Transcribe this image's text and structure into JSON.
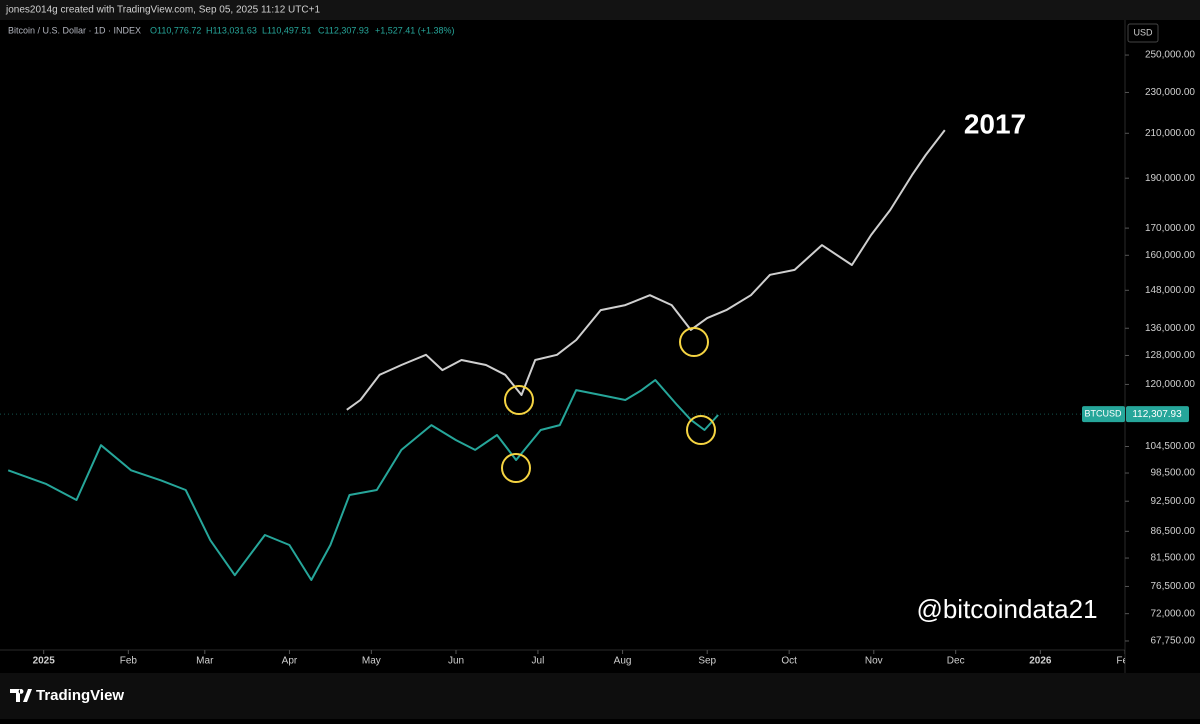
{
  "header": {
    "author_line": "jones2014g created with TradingView.com, Sep 05, 2025 11:12 UTC+1"
  },
  "legend": {
    "symbol": "Bitcoin / U.S. Dollar · 1D · INDEX",
    "open": "O110,776.72",
    "high": "H113,031.63",
    "low": "L110,497.51",
    "close": "C112,307.93",
    "change": "+1,527.41 (+1.38%)"
  },
  "footer": {
    "brand": "TradingView"
  },
  "chart_data": {
    "type": "line",
    "currency": "USD",
    "log_scale": true,
    "grid": false,
    "xlim": [
      -16,
      396
    ],
    "ylim": [
      66400,
      270300
    ],
    "xticks": [
      {
        "value": 0,
        "label": "2025"
      },
      {
        "value": 31,
        "label": "Feb"
      },
      {
        "value": 59,
        "label": "Mar"
      },
      {
        "value": 90,
        "label": "Apr"
      },
      {
        "value": 120,
        "label": "May"
      },
      {
        "value": 151,
        "label": "Jun"
      },
      {
        "value": 181,
        "label": "Jul"
      },
      {
        "value": 212,
        "label": "Aug"
      },
      {
        "value": 243,
        "label": "Sep"
      },
      {
        "value": 273,
        "label": "Oct"
      },
      {
        "value": 304,
        "label": "Nov"
      },
      {
        "value": 334,
        "label": "Dec"
      },
      {
        "value": 365,
        "label": "2026"
      },
      {
        "value": 396,
        "label": "Feb"
      }
    ],
    "yticks": [
      {
        "value": 250000,
        "label": "250,000.00"
      },
      {
        "value": 230000,
        "label": "230,000.00"
      },
      {
        "value": 210000,
        "label": "210,000.00"
      },
      {
        "value": 190000,
        "label": "190,000.00"
      },
      {
        "value": 170000,
        "label": "170,000.00"
      },
      {
        "value": 160000,
        "label": "160,000.00"
      },
      {
        "value": 148000,
        "label": "148,000.00"
      },
      {
        "value": 136000,
        "label": "136,000.00"
      },
      {
        "value": 128000,
        "label": "128,000.00"
      },
      {
        "value": 120000,
        "label": "120,000.00"
      },
      {
        "value": 104500,
        "label": "104,500.00"
      },
      {
        "value": 98500,
        "label": "98,500.00"
      },
      {
        "value": 92500,
        "label": "92,500.00"
      },
      {
        "value": 86500,
        "label": "86,500.00"
      },
      {
        "value": 81500,
        "label": "81,500.00"
      },
      {
        "value": 76500,
        "label": "76,500.00"
      },
      {
        "value": 72000,
        "label": "72,000.00"
      },
      {
        "value": 67750,
        "label": "67,750.00"
      }
    ],
    "series": [
      {
        "name": "BTCUSD",
        "color": "#26a69a",
        "x": [
          -13,
          1,
          12,
          21,
          32,
          43,
          52,
          61,
          70,
          81,
          90,
          98,
          105,
          112,
          122,
          131,
          142,
          151,
          158,
          166,
          173,
          182,
          189,
          195,
          204,
          213,
          219,
          224,
          232,
          237,
          242,
          247
        ],
        "values": [
          99100,
          96100,
          92750,
          104800,
          99100,
          96900,
          94850,
          84800,
          78450,
          85800,
          83900,
          77600,
          83900,
          93800,
          94850,
          103700,
          109600,
          106000,
          103700,
          107200,
          101400,
          108400,
          109600,
          118500,
          117200,
          115900,
          118500,
          121200,
          114600,
          110900,
          108400,
          112100
        ]
      },
      {
        "name": "2017",
        "color": "#cfcfcf",
        "x": [
          111,
          116,
          123,
          131,
          140,
          146,
          153,
          162,
          169,
          175,
          180,
          188,
          195,
          204,
          213,
          222,
          230,
          237,
          243,
          250,
          259,
          266,
          275,
          285,
          296,
          303,
          310,
          318,
          323,
          330
        ],
        "values": [
          113400,
          115900,
          122600,
          125300,
          128200,
          123900,
          126700,
          125300,
          122600,
          117200,
          126700,
          128200,
          132500,
          141600,
          143200,
          146400,
          143200,
          135500,
          139100,
          141600,
          146400,
          153200,
          154900,
          163700,
          156600,
          167400,
          177000,
          191300,
          200100,
          211500
        ]
      }
    ],
    "last_price": {
      "value": 112307.93,
      "label": "112,307.93"
    },
    "annotations": {
      "fractal_label": "2017",
      "watermark": "@bitcoindata21"
    }
  }
}
